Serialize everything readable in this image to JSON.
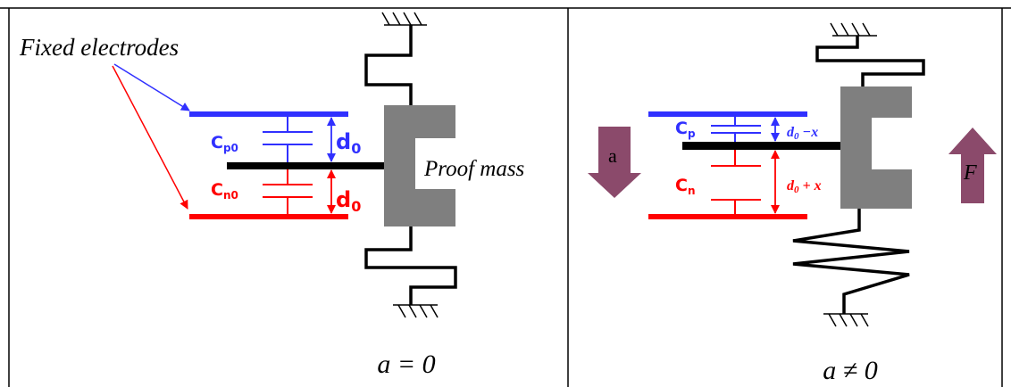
{
  "left_panel": {
    "fixed_electrodes_label": "Fixed electrodes",
    "proof_mass_label": "Proof mass",
    "cap_top_label": {
      "main": "C",
      "sub": "p0"
    },
    "cap_bottom_label": {
      "main": "C",
      "sub": "n0"
    },
    "gap_top_label": {
      "main": "d",
      "sub": "0"
    },
    "gap_bottom_label": {
      "main": "d",
      "sub": "0"
    },
    "condition": "a = 0"
  },
  "right_panel": {
    "cap_top_label": {
      "main": "C",
      "sub": "p"
    },
    "cap_bottom_label": {
      "main": "C",
      "sub": "n"
    },
    "gap_top_label": {
      "main": "d",
      "sub": "0",
      "rest": " −x"
    },
    "gap_bottom_label": {
      "main": "d",
      "sub": "0",
      "rest": " + x"
    },
    "accel_arrow_label": "a",
    "force_arrow_label": "F",
    "condition": "a ≠ 0"
  },
  "colors": {
    "positive_electrode": "#3030ff",
    "negative_electrode": "#ff0000",
    "proof_mass": "#7f7f7f",
    "arrow": "#8b4a6b",
    "spring": "#000000"
  }
}
